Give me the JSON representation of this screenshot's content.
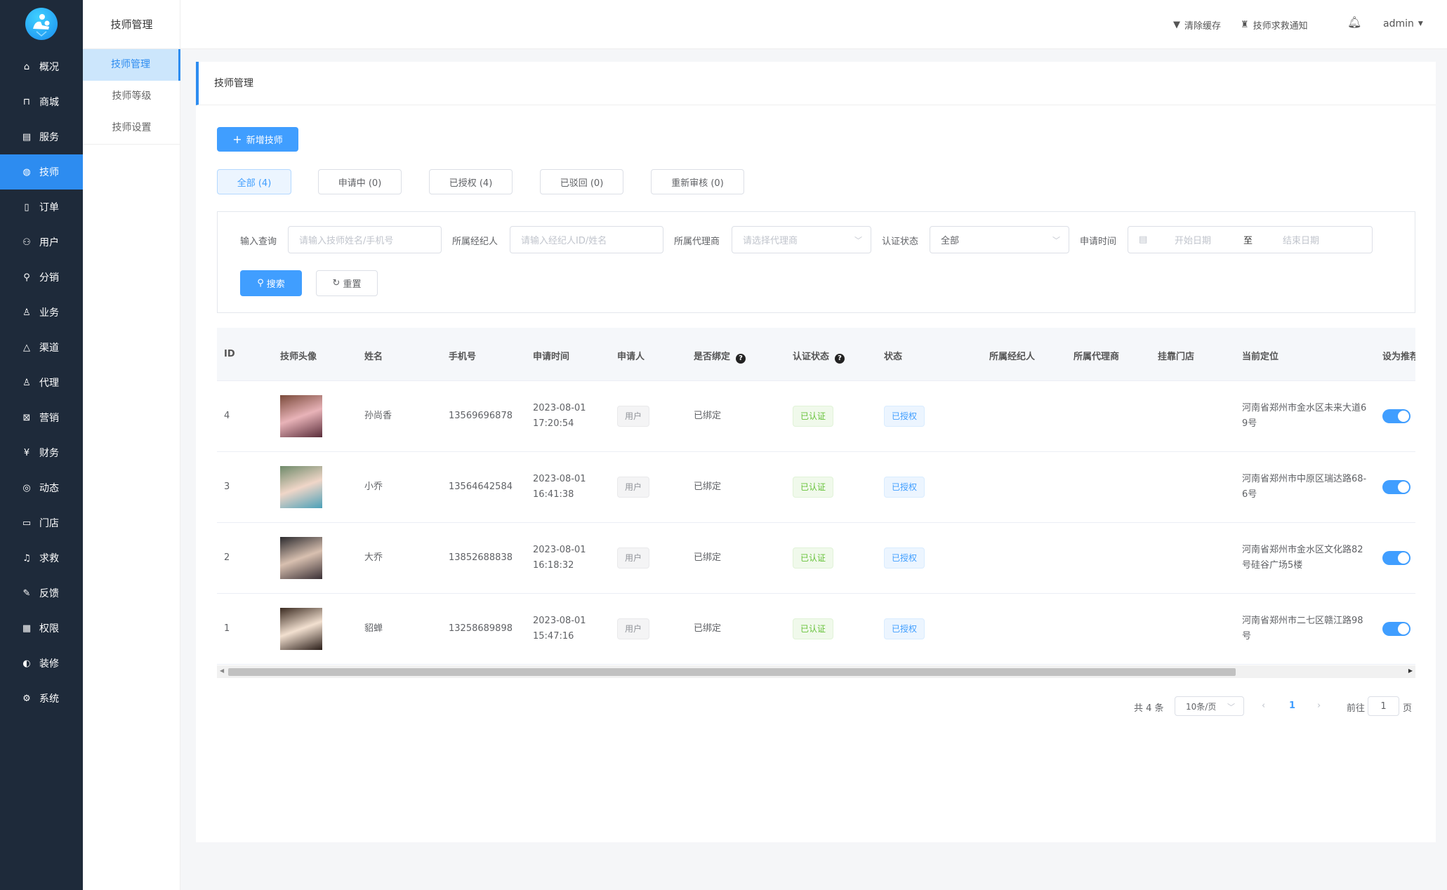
{
  "sidebar": {
    "items": [
      {
        "label": "概况",
        "icon": "home-icon",
        "glyph": "⌂"
      },
      {
        "label": "商城",
        "icon": "shopping-bag-icon",
        "glyph": "⊓"
      },
      {
        "label": "服务",
        "icon": "service-icon",
        "glyph": "▤"
      },
      {
        "label": "技师",
        "icon": "technician-icon",
        "glyph": "◍"
      },
      {
        "label": "订单",
        "icon": "order-icon",
        "glyph": "▯"
      },
      {
        "label": "用户",
        "icon": "users-icon",
        "glyph": "⚇"
      },
      {
        "label": "分销",
        "icon": "distribution-icon",
        "glyph": "⚲"
      },
      {
        "label": "业务",
        "icon": "business-icon",
        "glyph": "♙"
      },
      {
        "label": "渠道",
        "icon": "channel-icon",
        "glyph": "△"
      },
      {
        "label": "代理",
        "icon": "agent-icon",
        "glyph": "♙"
      },
      {
        "label": "营销",
        "icon": "marketing-icon",
        "glyph": "⊠"
      },
      {
        "label": "财务",
        "icon": "finance-icon",
        "glyph": "¥"
      },
      {
        "label": "动态",
        "icon": "compass-icon",
        "glyph": "◎"
      },
      {
        "label": "门店",
        "icon": "store-icon",
        "glyph": "▭"
      },
      {
        "label": "求救",
        "icon": "bell-icon",
        "glyph": "♫"
      },
      {
        "label": "反馈",
        "icon": "feedback-icon",
        "glyph": "✎"
      },
      {
        "label": "权限",
        "icon": "permission-icon",
        "glyph": "▦"
      },
      {
        "label": "装修",
        "icon": "palette-icon",
        "glyph": "◐"
      },
      {
        "label": "系统",
        "icon": "gear-icon",
        "glyph": "⚙"
      }
    ],
    "active": 3
  },
  "subpanel": {
    "title": "技师管理",
    "items": [
      "技师管理",
      "技师等级",
      "技师设置"
    ],
    "active": 0
  },
  "topbar": {
    "clear_cache": "清除缓存",
    "sos_notice": "技师求救通知",
    "user": "admin"
  },
  "page": {
    "title": "技师管理",
    "add_button": "新增技师"
  },
  "tabs": [
    {
      "label": "全部 (4)"
    },
    {
      "label": "申请中 (0)"
    },
    {
      "label": "已授权 (4)"
    },
    {
      "label": "已驳回 (0)"
    },
    {
      "label": "重新审核 (0)"
    }
  ],
  "filters": {
    "query_label": "输入查询",
    "query_placeholder": "请输入技师姓名/手机号",
    "broker_label": "所属经纪人",
    "broker_placeholder": "请输入经纪人ID/姓名",
    "agent_label": "所属代理商",
    "agent_placeholder": "请选择代理商",
    "cert_label": "认证状态",
    "cert_value": "全部",
    "time_label": "申请时间",
    "start_placeholder": "开始日期",
    "range_sep": "至",
    "end_placeholder": "结束日期",
    "search": "搜索",
    "reset": "重置"
  },
  "table": {
    "columns": [
      "ID",
      "技师头像",
      "姓名",
      "手机号",
      "申请时间",
      "申请人",
      "是否绑定",
      "认证状态",
      "状态",
      "所属经纪人",
      "所属代理商",
      "挂靠门店",
      "当前定位",
      "设为推荐"
    ],
    "rows": [
      {
        "id": "4",
        "name": "孙尚香",
        "phone": "13569696878",
        "date": "2023-08-01",
        "time": "17:20:54",
        "applicant": "用户",
        "bind": "已绑定",
        "cert": "已认证",
        "status": "已授权",
        "broker": "",
        "agent": "",
        "store": "",
        "location": "河南省郑州市金水区未来大道69号",
        "recommend": true
      },
      {
        "id": "3",
        "name": "小乔",
        "phone": "13564642584",
        "date": "2023-08-01",
        "time": "16:41:38",
        "applicant": "用户",
        "bind": "已绑定",
        "cert": "已认证",
        "status": "已授权",
        "broker": "",
        "agent": "",
        "store": "",
        "location": "河南省郑州市中原区瑞达路68-6号",
        "recommend": true
      },
      {
        "id": "2",
        "name": "大乔",
        "phone": "13852688838",
        "date": "2023-08-01",
        "time": "16:18:32",
        "applicant": "用户",
        "bind": "已绑定",
        "cert": "已认证",
        "status": "已授权",
        "broker": "",
        "agent": "",
        "store": "",
        "location": "河南省郑州市金水区文化路82号硅谷广场5楼",
        "recommend": true
      },
      {
        "id": "1",
        "name": "貂蝉",
        "phone": "13258689898",
        "date": "2023-08-01",
        "time": "15:47:16",
        "applicant": "用户",
        "bind": "已绑定",
        "cert": "已认证",
        "status": "已授权",
        "broker": "",
        "agent": "",
        "store": "",
        "location": "河南省郑州市二七区赣江路98号",
        "recommend": true
      }
    ]
  },
  "pagination": {
    "total": "共 4 条",
    "page_size": "10条/页",
    "current": "1",
    "goto_label": "前往",
    "goto_value": "1",
    "page_unit": "页"
  },
  "colors": {
    "sidebar": "#1e2a3a",
    "accent": "#409eff",
    "active_nav": "#2d8cf0"
  }
}
